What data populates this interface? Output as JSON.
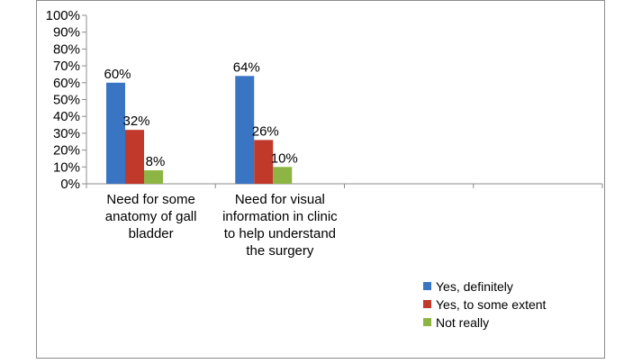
{
  "chart_data": {
    "type": "bar",
    "categories": [
      "Need for some anatomy of  gall bladder",
      "Need for visual information in clinic to help understand the surgery",
      "",
      ""
    ],
    "category_lines": [
      [
        "Need for some",
        "anatomy of  gall",
        "bladder"
      ],
      [
        "Need for visual",
        "information in clinic",
        "to help understand",
        "the surgery"
      ],
      [],
      []
    ],
    "series": [
      {
        "name": "Yes, definitely",
        "color": "#3a75c4",
        "values": [
          60,
          64,
          null,
          null
        ],
        "labels": [
          "60%",
          "64%",
          "",
          ""
        ]
      },
      {
        "name": "Yes, to some extent",
        "color": "#c0392b",
        "values": [
          32,
          26,
          null,
          null
        ],
        "labels": [
          "32%",
          "26%",
          "",
          ""
        ]
      },
      {
        "name": "Not really",
        "color": "#8db543",
        "values": [
          8,
          10,
          null,
          null
        ],
        "labels": [
          "8%",
          "10%",
          "",
          ""
        ]
      }
    ],
    "ylim": [
      0,
      100
    ],
    "yticks": [
      "0%",
      "10%",
      "20%",
      "30%",
      "40%",
      "50%",
      "60%",
      "70%",
      "80%",
      "90%",
      "100%"
    ],
    "grid": false,
    "legend_position": "bottom-right"
  }
}
